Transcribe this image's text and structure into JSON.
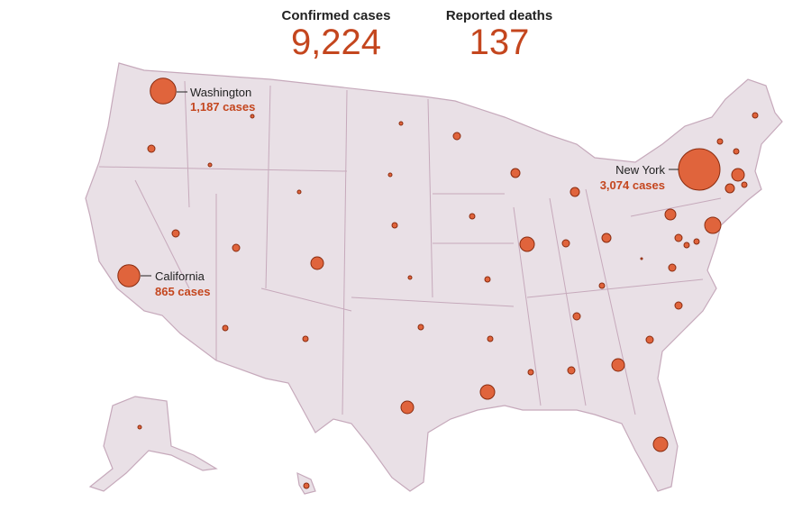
{
  "header": {
    "confirmed_label": "Confirmed cases",
    "confirmed_value": "9,224",
    "deaths_label": "Reported deaths",
    "deaths_value": "137"
  },
  "annotations": [
    {
      "name": "Washington",
      "label": "1,187 cases"
    },
    {
      "name": "California",
      "label": "865 cases"
    },
    {
      "name": "New York",
      "label": "3,074 cases"
    }
  ],
  "bubbles": [
    1187,
    865,
    3074,
    470,
    285,
    145,
    52,
    52,
    52,
    52,
    209,
    93,
    52,
    52,
    93,
    6,
    93,
    93,
    285,
    372,
    93,
    52,
    93,
    52,
    145,
    145,
    93,
    372,
    145,
    93,
    52,
    52,
    52,
    372,
    285,
    52,
    23,
    52,
    23,
    23,
    23,
    23,
    285,
    52,
    52,
    93,
    93,
    23,
    93,
    23,
    52
  ]
}
